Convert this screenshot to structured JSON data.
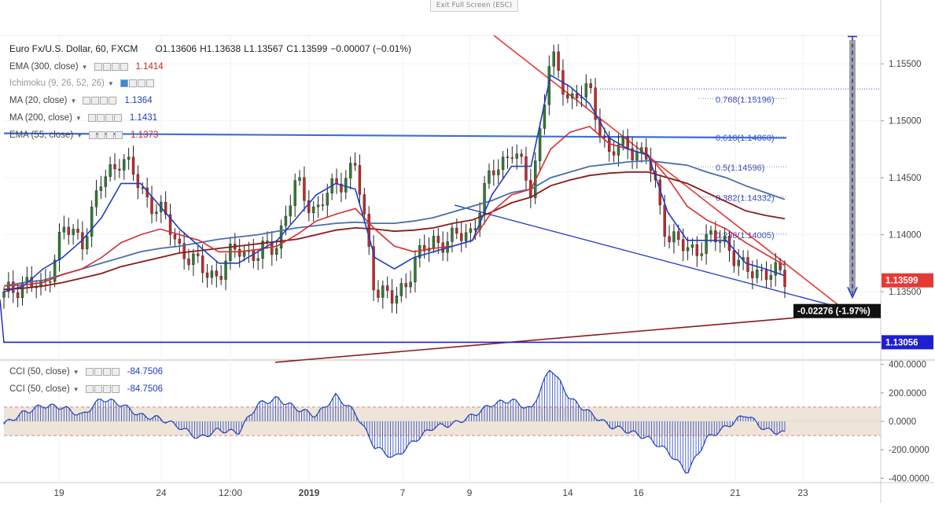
{
  "header": {
    "exit_fullscreen": "Exit Full Screen (ESC)",
    "symbol": "Euro Fx/U.S. Dollar, 60, FXCM",
    "open": "O1.13606",
    "high": "H1.13638",
    "low": "L1.13567",
    "close": "C1.13599",
    "change": "−0.00007 (−0.01%)"
  },
  "legend": [
    {
      "label": "EMA (300, close)",
      "value": "1.1414",
      "color": "#c62828"
    },
    {
      "label": "Ichimoku (9, 26, 52, 26)",
      "value": "",
      "color": "#999999"
    },
    {
      "label": "MA (20, close)",
      "value": "1.1364",
      "color": "#1f3fbf"
    },
    {
      "label": "MA (200, close)",
      "value": "1.1431",
      "color": "#1f3fbf"
    },
    {
      "label": "EMA (55, close)",
      "value": "1.1373",
      "color": "#c62828"
    }
  ],
  "cci_legend": [
    {
      "label": "CCI (50, close)",
      "value": "-84.7506",
      "color": "#1f3fbf"
    },
    {
      "label": "CCI (50, close)",
      "value": "-84.7506",
      "color": "#1f3fbf"
    }
  ],
  "price_axis": {
    "ticks": [
      "1.15500",
      "1.15000",
      "1.14500",
      "1.14000",
      "1.13500"
    ],
    "current_label": "1.13599",
    "support_label": "1.13056",
    "measure_label": "-0.02276 (-1.97%)"
  },
  "fib_levels": [
    {
      "label": "0.768(1.15196)",
      "price": 1.15196
    },
    {
      "label": "0.618(1.14860)",
      "price": 1.1486
    },
    {
      "label": "0.5(1.14596)",
      "price": 1.14596
    },
    {
      "label": "0.382(1.14332)",
      "price": 1.14332
    },
    {
      "label": "0.236(1.14005)",
      "price": 1.14005
    }
  ],
  "cci_axis": {
    "ticks": [
      "400.0000",
      "200.0000",
      "0.0000",
      "-200.0000",
      "-400.0000"
    ]
  },
  "time_axis": {
    "ticks": [
      "19",
      "24",
      "12:00",
      "2019",
      "7",
      "9",
      "14",
      "16",
      "21",
      "23"
    ]
  },
  "colors": {
    "up_candle": "#2e7d32",
    "down_candle": "#c62828",
    "ma20": "#1f3fbf",
    "ma200": "#4a6fa8",
    "ema55": "#d32f2f",
    "ema300": "#8b1a1a",
    "trend_red": "#e53935",
    "trend_blue": "#2340c8",
    "flag_blue": "#3a6fd8",
    "cci_blue": "#1f3fbf",
    "cci_band": "#e8dccb"
  },
  "chart_data": {
    "type": "line",
    "title": "Euro Fx/U.S. Dollar, 60, FXCM",
    "price_ylim": [
      1.129,
      1.1575
    ],
    "cci_ylim": [
      -420,
      420
    ],
    "x": [
      0,
      6,
      12,
      18,
      24,
      30,
      36,
      42,
      48,
      54,
      60,
      66,
      72,
      78,
      84,
      90,
      96,
      102,
      108,
      114,
      120,
      126,
      132,
      138,
      144,
      150,
      156,
      162,
      168,
      174,
      180,
      186,
      192,
      198,
      204,
      210,
      216,
      222,
      228,
      234,
      240
    ],
    "series": [
      {
        "name": "close",
        "values": [
          1.1345,
          1.136,
          1.135,
          1.1405,
          1.1395,
          1.1445,
          1.147,
          1.144,
          1.142,
          1.139,
          1.137,
          1.1365,
          1.139,
          1.138,
          1.1395,
          1.1445,
          1.142,
          1.1445,
          1.146,
          1.1355,
          1.134,
          1.1375,
          1.1395,
          1.1395,
          1.1405,
          1.1455,
          1.1475,
          1.144,
          1.1555,
          1.152,
          1.1525,
          1.147,
          1.148,
          1.1465,
          1.14,
          1.1385,
          1.1395,
          1.1395,
          1.1365,
          1.137,
          1.136
        ]
      },
      {
        "name": "MA (20, close)",
        "values": [
          1.135,
          1.1355,
          1.137,
          1.138,
          1.1395,
          1.1415,
          1.1445,
          1.1445,
          1.1425,
          1.1405,
          1.139,
          1.1375,
          1.1375,
          1.1385,
          1.1395,
          1.1415,
          1.1435,
          1.1445,
          1.144,
          1.138,
          1.137,
          1.138,
          1.1385,
          1.139,
          1.1395,
          1.1435,
          1.146,
          1.146,
          1.154,
          1.153,
          1.1515,
          1.1485,
          1.1475,
          1.147,
          1.142,
          1.1395,
          1.1395,
          1.1395,
          1.1375,
          1.137,
          1.1364
        ]
      },
      {
        "name": "MA (200, close)",
        "values": [
          1.1355,
          1.1358,
          1.136,
          1.1365,
          1.137,
          1.1375,
          1.138,
          1.1385,
          1.1388,
          1.139,
          1.1393,
          1.1396,
          1.1398,
          1.14,
          1.1403,
          1.1406,
          1.1408,
          1.141,
          1.1411,
          1.141,
          1.141,
          1.1412,
          1.1415,
          1.142,
          1.1425,
          1.143,
          1.1437,
          1.144,
          1.145,
          1.1455,
          1.146,
          1.1462,
          1.1464,
          1.1465,
          1.1463,
          1.1461,
          1.1455,
          1.145,
          1.1443,
          1.1437,
          1.1431
        ]
      },
      {
        "name": "EMA (55, close)",
        "values": [
          1.1355,
          1.1356,
          1.1358,
          1.1365,
          1.137,
          1.138,
          1.1393,
          1.14,
          1.1405,
          1.14,
          1.1395,
          1.1385,
          1.1385,
          1.1387,
          1.139,
          1.14,
          1.1412,
          1.1418,
          1.1423,
          1.1405,
          1.139,
          1.1385,
          1.1388,
          1.139,
          1.1395,
          1.142,
          1.1435,
          1.144,
          1.1475,
          1.149,
          1.1495,
          1.148,
          1.1475,
          1.147,
          1.145,
          1.1425,
          1.1413,
          1.1405,
          1.1393,
          1.1383,
          1.1373
        ]
      },
      {
        "name": "EMA (300, close)",
        "values": [
          1.1352,
          1.1353,
          1.1355,
          1.1358,
          1.1362,
          1.1366,
          1.1372,
          1.1376,
          1.138,
          1.1384,
          1.1386,
          1.1388,
          1.139,
          1.1392,
          1.1394,
          1.1396,
          1.14,
          1.1404,
          1.1406,
          1.1405,
          1.1403,
          1.1404,
          1.1406,
          1.141,
          1.1413,
          1.142,
          1.1428,
          1.1433,
          1.1443,
          1.1448,
          1.1452,
          1.1454,
          1.1455,
          1.1455,
          1.145,
          1.1445,
          1.1437,
          1.1429,
          1.1421,
          1.1417,
          1.1414
        ]
      },
      {
        "name": "CCI (50, close)",
        "values": [
          -20,
          60,
          110,
          100,
          40,
          160,
          120,
          40,
          20,
          -40,
          -120,
          -60,
          -80,
          120,
          160,
          90,
          40,
          180,
          60,
          -180,
          -260,
          -140,
          -40,
          -20,
          40,
          120,
          150,
          80,
          380,
          160,
          60,
          -30,
          -70,
          -120,
          -210,
          -360,
          -120,
          -40,
          50,
          -60,
          -84.75
        ]
      }
    ]
  }
}
